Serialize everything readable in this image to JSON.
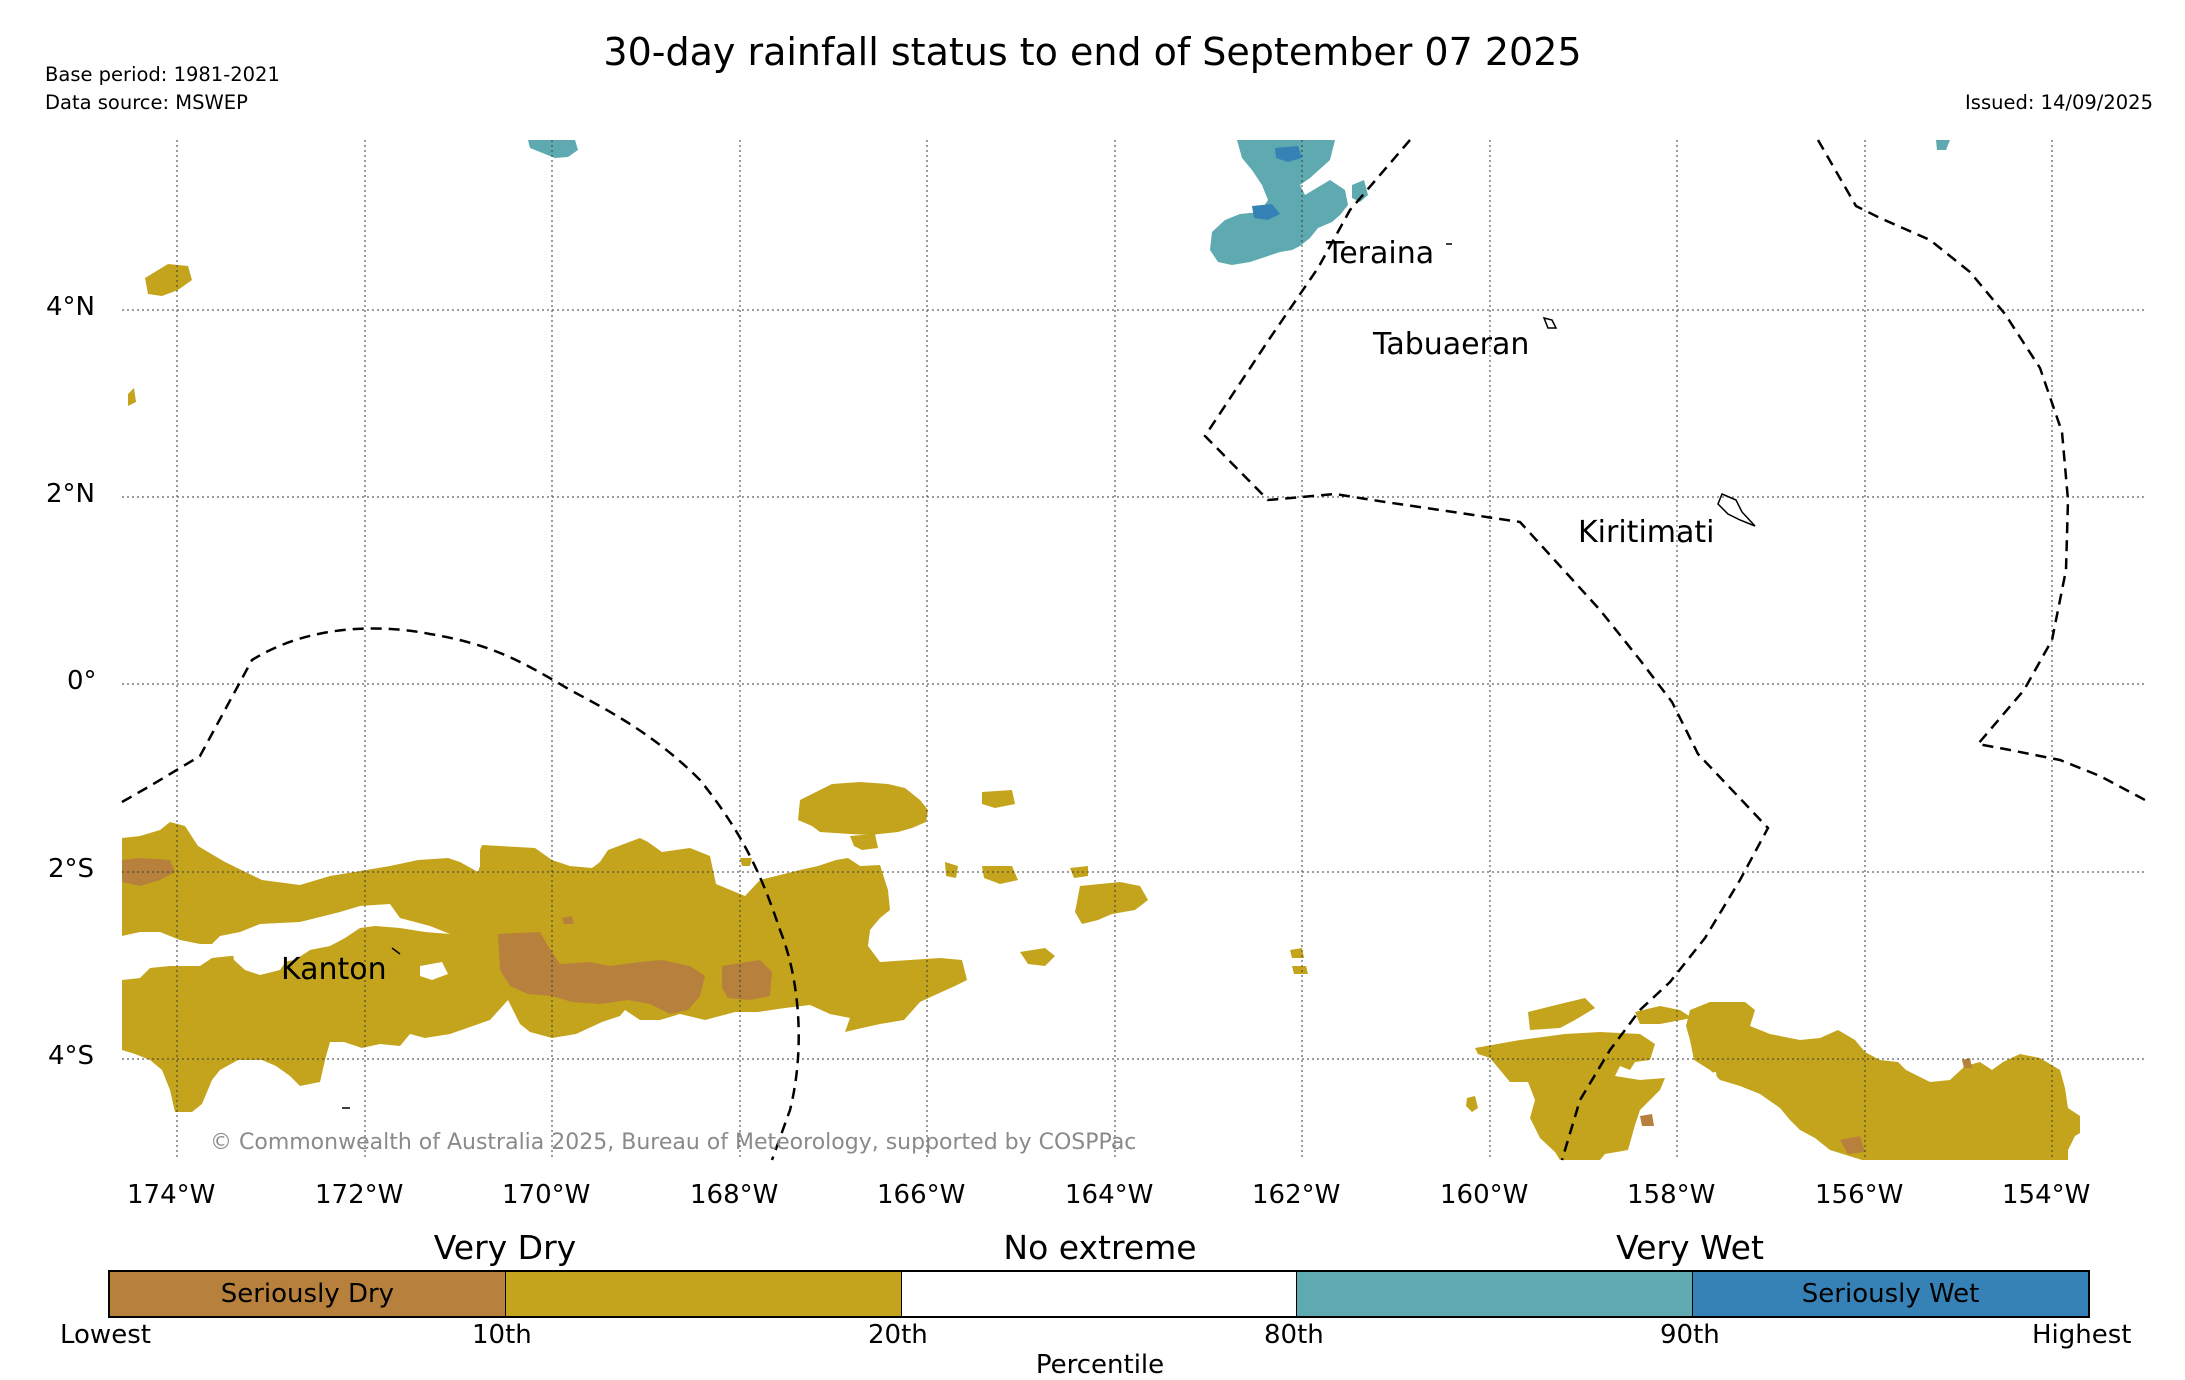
{
  "title": "30-day rainfall status to end of September 07 2025",
  "meta": {
    "base_period": "Base period: 1981-2021",
    "data_source": "Data source: MSWEP",
    "issued": "Issued: 14/09/2025"
  },
  "map": {
    "lat_labels": [
      "4°N",
      "2°N",
      "0°",
      "2°S",
      "4°S"
    ],
    "lon_labels": [
      "174°W",
      "172°W",
      "170°W",
      "168°W",
      "166°W",
      "164°W",
      "162°W",
      "160°W",
      "158°W",
      "156°W",
      "154°W"
    ],
    "places": {
      "teraina": "Teraina",
      "tabuaeran": "Tabuaeran",
      "kiritimati": "Kiritimati",
      "kanton": "Kanton"
    },
    "copyright": "© Commonwealth of Australia 2025, Bureau of Meteorology, supported by COSPPac"
  },
  "colorbar": {
    "groups": [
      "Very Dry",
      "No extreme",
      "Very Wet"
    ],
    "inner_labels": [
      "Seriously Dry",
      "Seriously Wet"
    ],
    "ticks": [
      "Lowest",
      "10th",
      "20th",
      "80th",
      "90th",
      "Highest"
    ],
    "axis_label": "Percentile",
    "colors": {
      "seriously_dry": "#b7803c",
      "very_dry": "#c4a41c",
      "no_extreme": "#ffffff",
      "very_wet": "#5eaab0",
      "seriously_wet": "#3682b6"
    }
  }
}
